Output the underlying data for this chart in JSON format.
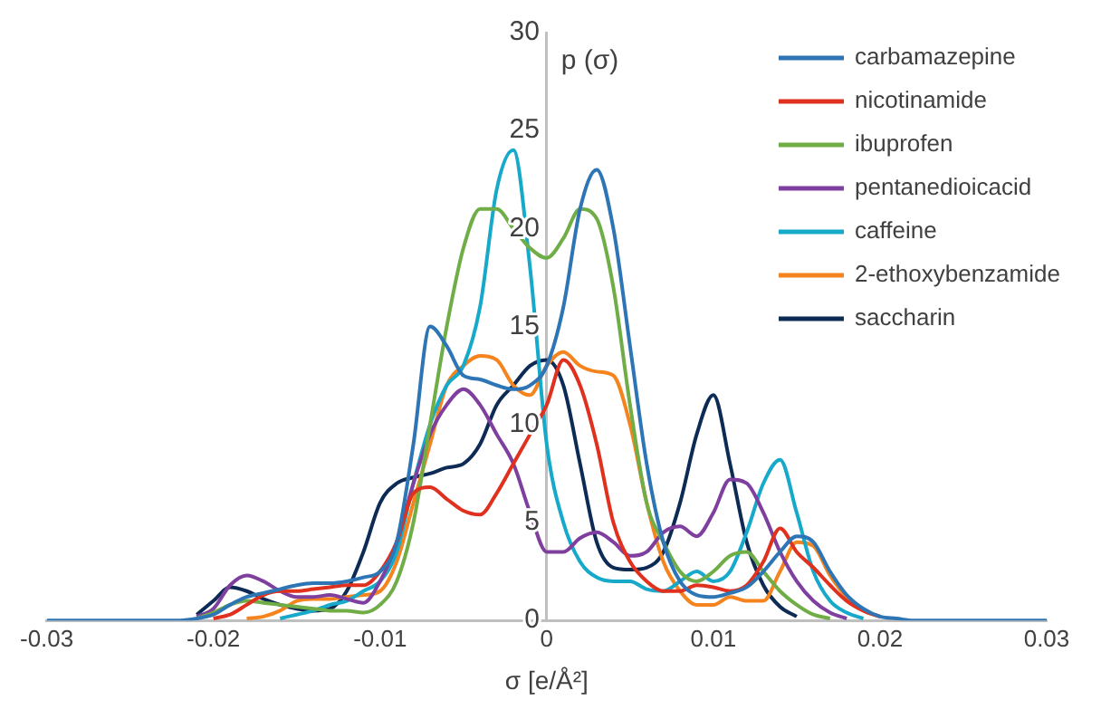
{
  "chart_data": {
    "type": "line",
    "xlabel": "σ [e/Å²]",
    "ylabel": "p (σ)",
    "legend": "top right",
    "grid": false,
    "marker": "none",
    "x": [
      -0.03,
      -0.022,
      -0.021,
      -0.02,
      -0.019,
      -0.018,
      -0.017,
      -0.016,
      -0.015,
      -0.014,
      -0.013,
      -0.012,
      -0.011,
      -0.01,
      -0.009,
      -0.008,
      -0.007,
      -0.006,
      -0.005,
      -0.004,
      -0.003,
      -0.002,
      -0.001,
      0,
      0.001,
      0.002,
      0.003,
      0.004,
      0.005,
      0.006,
      0.007,
      0.008,
      0.009,
      0.01,
      0.011,
      0.012,
      0.013,
      0.014,
      0.015,
      0.016,
      0.017,
      0.018,
      0.019,
      0.02,
      0.021,
      0.022,
      0.03
    ],
    "xlim": [
      -0.03,
      0.03
    ],
    "xticks": [
      -0.03,
      -0.02,
      -0.01,
      0,
      0.01,
      0.02,
      0.03
    ],
    "ylim": [
      0,
      30
    ],
    "yticks": [
      0,
      5,
      10,
      15,
      20,
      25,
      30
    ],
    "series": [
      {
        "name": "carbamazepine",
        "color": "#2e75b6",
        "values": [
          0,
          0,
          0.1,
          0.3,
          0.8,
          1.2,
          1.4,
          1.6,
          1.8,
          1.9,
          1.9,
          2,
          2.2,
          2.5,
          4,
          9,
          15,
          14,
          12.5,
          12.3,
          12,
          11.8,
          12,
          13,
          16,
          21,
          23,
          20,
          14,
          8,
          4,
          2,
          1.3,
          1.2,
          1.4,
          1.7,
          2.5,
          3.5,
          4.3,
          4,
          2.5,
          1.3,
          0.6,
          0.2,
          0.1,
          0,
          0
        ]
      },
      {
        "name": "nicotinamide",
        "color": "#e0301e",
        "x": [
          -0.02,
          -0.019,
          -0.018,
          -0.017,
          -0.016,
          -0.015,
          -0.014,
          -0.013,
          -0.012,
          -0.011,
          -0.01,
          -0.009,
          -0.008,
          -0.007,
          -0.006,
          -0.005,
          -0.004,
          -0.003,
          -0.002,
          -0.001,
          0,
          0.001,
          0.002,
          0.003,
          0.004,
          0.005,
          0.006,
          0.007,
          0.008,
          0.009,
          0.01,
          0.011,
          0.012,
          0.013,
          0.014,
          0.015,
          0.016,
          0.017,
          0.018,
          0.019,
          0.02
        ],
        "values": [
          0.1,
          0.3,
          0.8,
          1.3,
          1.5,
          1.5,
          1.6,
          1.7,
          1.8,
          1.8,
          2.5,
          4,
          6.5,
          6.8,
          6.2,
          5.6,
          5.4,
          6.5,
          8,
          9.5,
          11,
          13.3,
          12,
          9,
          5,
          3,
          2,
          1.5,
          1.5,
          1.8,
          1.7,
          1.5,
          1.8,
          3,
          4.7,
          3.5,
          2.7,
          1.8,
          1,
          0.5,
          0.2
        ]
      },
      {
        "name": "ibuprofen",
        "color": "#70ad47",
        "x": [
          -0.021,
          -0.02,
          -0.019,
          -0.018,
          -0.017,
          -0.016,
          -0.015,
          -0.014,
          -0.013,
          -0.012,
          -0.011,
          -0.01,
          -0.009,
          -0.008,
          -0.007,
          -0.006,
          -0.005,
          -0.004,
          -0.003,
          -0.002,
          -0.001,
          0,
          0.001,
          0.002,
          0.003,
          0.004,
          0.005,
          0.006,
          0.007,
          0.008,
          0.009,
          0.01,
          0.011,
          0.012,
          0.013,
          0.014,
          0.015,
          0.016,
          0.017
        ],
        "values": [
          0.1,
          0.4,
          0.8,
          1,
          0.9,
          0.8,
          0.7,
          0.6,
          0.5,
          0.5,
          0.4,
          0.8,
          2,
          5,
          10,
          15,
          19,
          21,
          21,
          20,
          19,
          18.5,
          19.5,
          21,
          20.5,
          17,
          11,
          6,
          4,
          2.5,
          2,
          2.5,
          3.3,
          3.5,
          2.5,
          1.5,
          0.8,
          0.3,
          0.1
        ]
      },
      {
        "name": "pentanedioicacid",
        "color": "#7f3f9f",
        "x": [
          -0.021,
          -0.02,
          -0.019,
          -0.018,
          -0.017,
          -0.016,
          -0.015,
          -0.014,
          -0.013,
          -0.012,
          -0.011,
          -0.01,
          -0.009,
          -0.008,
          -0.007,
          -0.006,
          -0.005,
          -0.004,
          -0.003,
          -0.002,
          -0.001,
          0,
          0.001,
          0.002,
          0.003,
          0.004,
          0.005,
          0.006,
          0.007,
          0.008,
          0.009,
          0.01,
          0.011,
          0.012,
          0.013,
          0.014,
          0.015,
          0.016,
          0.017,
          0.018
        ],
        "values": [
          0.2,
          0.6,
          1.8,
          2.3,
          2,
          1.5,
          1.2,
          1.2,
          1.3,
          1.1,
          0.9,
          2,
          4,
          7,
          9.5,
          11,
          11.8,
          11,
          9.5,
          8,
          5.5,
          3.5,
          3.5,
          4.2,
          4.5,
          4,
          3.3,
          3.5,
          4.5,
          4.8,
          4.3,
          5.5,
          7.2,
          7,
          5.5,
          3.5,
          2,
          1,
          0.4,
          0.1
        ]
      },
      {
        "name": "caffeine",
        "color": "#17a9c9",
        "x": [
          -0.016,
          -0.015,
          -0.014,
          -0.013,
          -0.012,
          -0.011,
          -0.01,
          -0.009,
          -0.008,
          -0.007,
          -0.006,
          -0.005,
          -0.004,
          -0.003,
          -0.002,
          -0.001,
          0,
          0.001,
          0.002,
          0.003,
          0.004,
          0.005,
          0.006,
          0.007,
          0.008,
          0.009,
          0.01,
          0.011,
          0.012,
          0.013,
          0.014,
          0.015,
          0.016,
          0.017,
          0.018,
          0.019
        ],
        "values": [
          0.1,
          0.3,
          0.5,
          0.8,
          1,
          1.5,
          2,
          3.5,
          7,
          10,
          12,
          13,
          16,
          22,
          24,
          18,
          9,
          5,
          3,
          2.2,
          2,
          2,
          1.6,
          1.5,
          2,
          2.5,
          2,
          2.5,
          4.5,
          7,
          8.2,
          5.5,
          2.5,
          1,
          0.4,
          0.1
        ]
      },
      {
        "name": "2-ethoxybenzamide",
        "color": "#f5841f",
        "x": [
          -0.018,
          -0.017,
          -0.016,
          -0.015,
          -0.014,
          -0.013,
          -0.012,
          -0.011,
          -0.01,
          -0.009,
          -0.008,
          -0.007,
          -0.006,
          -0.005,
          -0.004,
          -0.003,
          -0.002,
          -0.001,
          0,
          0.001,
          0.002,
          0.003,
          0.004,
          0.005,
          0.006,
          0.007,
          0.008,
          0.009,
          0.01,
          0.011,
          0.012,
          0.013,
          0.014,
          0.015,
          0.016,
          0.017,
          0.018,
          0.019,
          0.02
        ],
        "values": [
          0.1,
          0.2,
          0.5,
          1,
          1.1,
          1.1,
          1.2,
          1.3,
          1.5,
          3,
          6,
          9,
          12,
          13,
          13.5,
          13.3,
          12,
          11.5,
          13,
          13.7,
          13,
          12.7,
          12.5,
          10,
          6,
          3,
          1.5,
          0.8,
          0.8,
          1.2,
          1,
          1,
          2.5,
          4,
          3.8,
          2.3,
          1.2,
          0.5,
          0.2
        ]
      },
      {
        "name": "saccharin",
        "color": "#0d2b55",
        "x": [
          -0.021,
          -0.02,
          -0.019,
          -0.018,
          -0.017,
          -0.016,
          -0.015,
          -0.014,
          -0.013,
          -0.012,
          -0.011,
          -0.01,
          -0.009,
          -0.008,
          -0.007,
          -0.006,
          -0.005,
          -0.004,
          -0.003,
          -0.002,
          -0.001,
          0,
          0.001,
          0.002,
          0.003,
          0.004,
          0.005,
          0.006,
          0.007,
          0.008,
          0.009,
          0.01,
          0.011,
          0.012,
          0.013,
          0.014,
          0.015
        ],
        "values": [
          0.3,
          1,
          1.7,
          1.5,
          1.1,
          0.8,
          0.6,
          0.5,
          0.6,
          1.5,
          3.5,
          6,
          7,
          7.3,
          7.5,
          7.8,
          8,
          9,
          11,
          12,
          13,
          13.3,
          12,
          8,
          4,
          2.7,
          2.6,
          2.7,
          3.5,
          6,
          9.5,
          11.5,
          8,
          4,
          1.8,
          0.7,
          0.2
        ]
      }
    ]
  }
}
